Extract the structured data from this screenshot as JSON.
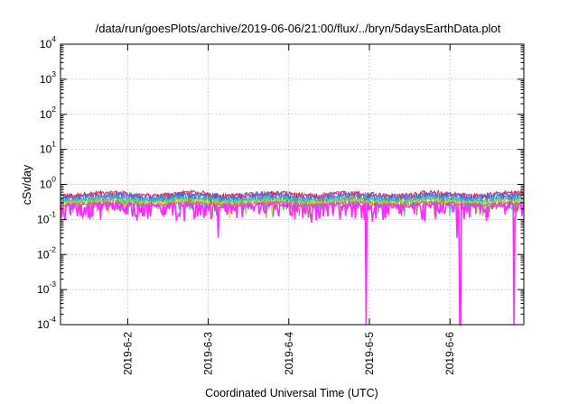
{
  "chart_data": {
    "type": "line",
    "title": "/data/run/goesPlots/archive/2019-06-06/21:00/flux/../bryn/5daysEarthData.plot",
    "xlabel": "Coordinated Universal Time (UTC)",
    "ylabel": "cSv/day",
    "y_scale": "log",
    "ylim": [
      0.0001,
      10000
    ],
    "xlim": [
      "2019-06-01T04:00",
      "2019-06-06T22:00"
    ],
    "grid": true,
    "legend": "none",
    "y_ticks": [
      {
        "value": 0.0001,
        "base": "10",
        "exp": "-4"
      },
      {
        "value": 0.001,
        "base": "10",
        "exp": "-3"
      },
      {
        "value": 0.01,
        "base": "10",
        "exp": "-2"
      },
      {
        "value": 0.1,
        "base": "10",
        "exp": "-1"
      },
      {
        "value": 1,
        "base": "10",
        "exp": "0"
      },
      {
        "value": 10,
        "base": "10",
        "exp": "1"
      },
      {
        "value": 100,
        "base": "10",
        "exp": "2"
      },
      {
        "value": 1000,
        "base": "10",
        "exp": "3"
      },
      {
        "value": 10000,
        "base": "10",
        "exp": "4"
      }
    ],
    "x_ticks": [
      "2019-6-2",
      "2019-6-3",
      "2019-6-4",
      "2019-6-5",
      "2019-6-6"
    ],
    "series": [
      {
        "color": "#e8192c",
        "level": 0.6,
        "amplitude": 0.18,
        "spike": 0.2
      },
      {
        "color": "#9b4fd0",
        "level": 0.56,
        "amplitude": 0.17,
        "spike": 0.16
      },
      {
        "color": "#2f6fd6",
        "level": 0.5,
        "amplitude": 0.16,
        "spike": 0.14
      },
      {
        "color": "#2bb8e8",
        "level": 0.44,
        "amplitude": 0.15,
        "spike": 0.1
      },
      {
        "color": "#25c7a0",
        "level": 0.4,
        "amplitude": 0.14,
        "spike": 0.08
      },
      {
        "color": "#8fd34a",
        "level": 0.36,
        "amplitude": 0.13,
        "spike": 0.06
      },
      {
        "color": "#d7c84a",
        "level": 0.33,
        "amplitude": 0.12,
        "spike": 0.05
      },
      {
        "color": "#a27f50",
        "level": 0.3,
        "amplitude": 0.11,
        "spike": 0.05
      },
      {
        "color": "#ff2cff",
        "level": 0.27,
        "amplitude": 0.1,
        "spike": 0.3
      }
    ],
    "deep_dropouts": [
      {
        "x": "2019-06-04T23:00",
        "min": 0.0001
      },
      {
        "x": "2019-06-06T03:00",
        "min": 0.0001
      },
      {
        "x": "2019-06-06T19:00",
        "min": 0.0001
      },
      {
        "x": "2019-06-03T03:00",
        "min": 0.03
      },
      {
        "x": "2019-06-06T02:00",
        "min": 0.03
      }
    ]
  }
}
